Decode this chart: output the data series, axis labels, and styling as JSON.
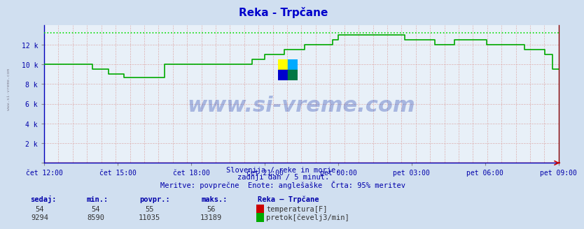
{
  "title": "Reka - Trpčane",
  "bg_color": "#d0dff0",
  "plot_bg_color": "#e8f0f8",
  "x_labels": [
    "čet 12:00",
    "čet 15:00",
    "čet 18:00",
    "čet 21:00",
    "pet 00:00",
    "pet 03:00",
    "pet 06:00",
    "pet 09:00"
  ],
  "x_ticks_pos": [
    0,
    180,
    360,
    540,
    720,
    900,
    1080,
    1260
  ],
  "total_minutes": 1260,
  "y_ticks": [
    0,
    2000,
    4000,
    6000,
    8000,
    10000,
    12000
  ],
  "y_labels": [
    "",
    "2 k",
    "4 k",
    "6 k",
    "8 k",
    "10 k",
    "12 k"
  ],
  "ymax": 14000,
  "ymin": 0,
  "flow_color": "#00aa00",
  "temp_color": "#cc0000",
  "max_line_color": "#00cc00",
  "max_flow": 13189,
  "subtitle1": "Slovenija / reke in morje.",
  "subtitle2": "zadnji dan / 5 minut.",
  "subtitle3": "Meritve: povprečne  Enote: anglešaške  Črta: 95% meritev",
  "legend_title": "Reka – Trpčane",
  "temp_label": "temperatura[F]",
  "flow_label": "pretok[čevelj3/min]",
  "sedaj_temp": 54,
  "min_temp": 54,
  "povpr_temp": 55,
  "maks_temp": 56,
  "sedaj_flow": 9294,
  "min_flow": 8590,
  "povpr_flow": 11035,
  "maks_flow": 13189,
  "flow_data": [
    10000,
    10000,
    10000,
    10000,
    10000,
    10000,
    10000,
    10000,
    10000,
    10000,
    10000,
    10000,
    10000,
    10000,
    10000,
    10000,
    10000,
    10000,
    10000,
    10000,
    10000,
    10000,
    10000,
    10000,
    9500,
    9500,
    9500,
    9500,
    9500,
    9500,
    9500,
    9500,
    9000,
    9000,
    9000,
    9000,
    9000,
    9000,
    9000,
    9000,
    8700,
    8700,
    8700,
    8700,
    8700,
    8700,
    8700,
    8700,
    8700,
    8700,
    8700,
    8700,
    8700,
    8700,
    8700,
    8700,
    8700,
    8700,
    8700,
    8700,
    10000,
    10000,
    10000,
    10000,
    10000,
    10000,
    10000,
    10000,
    10000,
    10000,
    10000,
    10000,
    10000,
    10000,
    10000,
    10000,
    10000,
    10000,
    10000,
    10000,
    10000,
    10000,
    10000,
    10000,
    10000,
    10000,
    10000,
    10000,
    10000,
    10000,
    10000,
    10000,
    10000,
    10000,
    10000,
    10000,
    10000,
    10000,
    10000,
    10000,
    10000,
    10000,
    10000,
    10000,
    10500,
    10500,
    10500,
    10500,
    10500,
    10500,
    11000,
    11000,
    11000,
    11000,
    11000,
    11000,
    11000,
    11000,
    11000,
    11000,
    11500,
    11500,
    11500,
    11500,
    11500,
    11500,
    11500,
    11500,
    11500,
    11500,
    12000,
    12000,
    12000,
    12000,
    12000,
    12000,
    12000,
    12000,
    12000,
    12000,
    12000,
    12000,
    12000,
    12000,
    12500,
    12500,
    12500,
    13000,
    13000,
    13000,
    13000,
    13000,
    13000,
    13000,
    13000,
    13000,
    13000,
    13000,
    13000,
    13000,
    13000,
    13000,
    13000,
    13000,
    13000,
    13000,
    13000,
    13000,
    13000,
    13000,
    13000,
    13000,
    13000,
    13000,
    13000,
    13000,
    13000,
    13000,
    13000,
    13000,
    12500,
    12500,
    12500,
    12500,
    12500,
    12500,
    12500,
    12500,
    12500,
    12500,
    12500,
    12500,
    12500,
    12500,
    12500,
    12000,
    12000,
    12000,
    12000,
    12000,
    12000,
    12000,
    12000,
    12000,
    12000,
    12500,
    12500,
    12500,
    12500,
    12500,
    12500,
    12500,
    12500,
    12500,
    12500,
    12500,
    12500,
    12500,
    12500,
    12500,
    12500,
    12000,
    12000,
    12000,
    12000,
    12000,
    12000,
    12000,
    12000,
    12000,
    12000,
    12000,
    12000,
    12000,
    12000,
    12000,
    12000,
    12000,
    12000,
    12000,
    11500,
    11500,
    11500,
    11500,
    11500,
    11500,
    11500,
    11500,
    11500,
    11500,
    11000,
    11000,
    11000,
    11000,
    9500,
    9500,
    9500,
    9500
  ]
}
